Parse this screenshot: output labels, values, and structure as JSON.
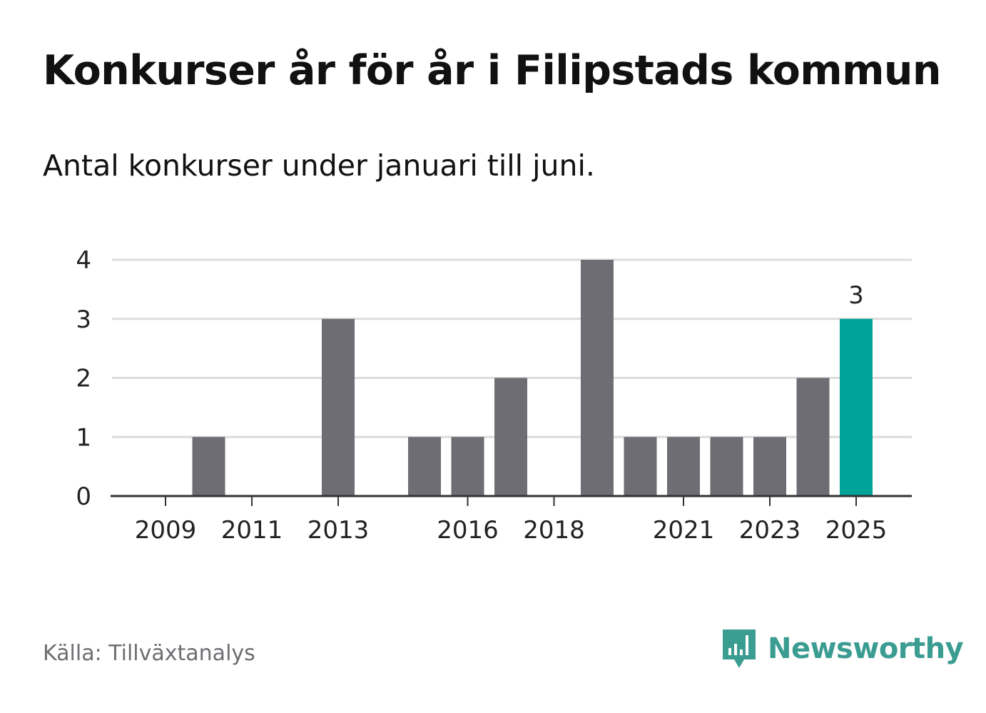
{
  "header": {
    "title": "Konkurser år för år i Filipstads kommun",
    "subtitle": "Antal konkurser under januari till juni."
  },
  "footer": {
    "source": "Källa: Tillväxtanalys",
    "brand": "Newsworthy",
    "brand_icon": "bar-chart-speech-bubble-icon"
  },
  "colors": {
    "bar": "#6e6d73",
    "highlight": "#00a398",
    "grid": "#dcdcdc",
    "axis": "#333333",
    "brand": "#3b9c92"
  },
  "chart_data": {
    "type": "bar",
    "categories": [
      "2009",
      "2010",
      "2011",
      "2012",
      "2013",
      "2014",
      "2015",
      "2016",
      "2017",
      "2018",
      "2019",
      "2020",
      "2021",
      "2022",
      "2023",
      "2024",
      "2025"
    ],
    "values": [
      0,
      1,
      0,
      0,
      3,
      0,
      1,
      1,
      2,
      0,
      4,
      1,
      1,
      1,
      1,
      2,
      3
    ],
    "tick_labels": [
      "2009",
      "2011",
      "2013",
      "2016",
      "2018",
      "2021",
      "2023",
      "2025"
    ],
    "highlight_category": "2025",
    "data_labels": [
      {
        "category": "2025",
        "text": "3"
      }
    ],
    "yticks": [
      0,
      1,
      2,
      3,
      4
    ],
    "ylim": [
      0,
      4
    ],
    "xlabel": "",
    "ylabel": "",
    "grid": true,
    "legend": "none"
  }
}
